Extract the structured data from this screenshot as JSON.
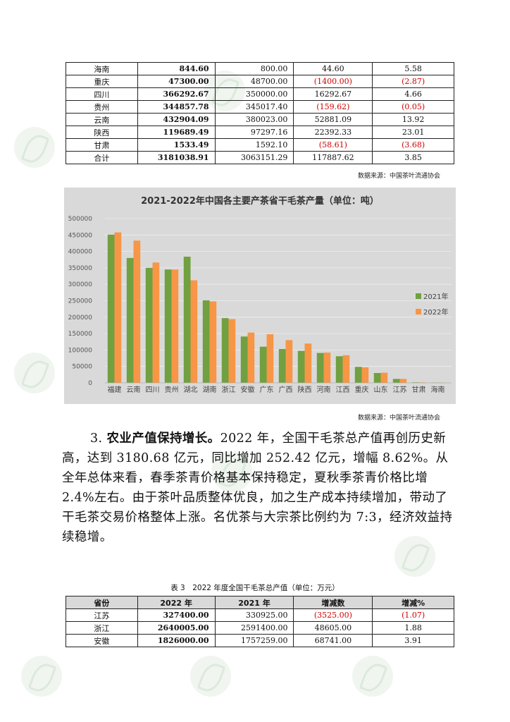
{
  "table1": {
    "rows": [
      {
        "province": "海南",
        "v2022": "844.60",
        "v2021": "800.00",
        "change": "44.60",
        "pct": "5.58",
        "neg": false
      },
      {
        "province": "重庆",
        "v2022": "47300.00",
        "v2021": "48700.00",
        "change": "(1400.00)",
        "pct": "(2.87)",
        "neg": true
      },
      {
        "province": "四川",
        "v2022": "366292.67",
        "v2021": "350000.00",
        "change": "16292.67",
        "pct": "4.66",
        "neg": false
      },
      {
        "province": "贵州",
        "v2022": "344857.78",
        "v2021": "345017.40",
        "change": "(159.62)",
        "pct": "(0.05)",
        "neg": true
      },
      {
        "province": "云南",
        "v2022": "432904.09",
        "v2021": "380023.00",
        "change": "52881.09",
        "pct": "13.92",
        "neg": false
      },
      {
        "province": "陕西",
        "v2022": "119689.49",
        "v2021": "97297.16",
        "change": "22392.33",
        "pct": "23.01",
        "neg": false
      },
      {
        "province": "甘肃",
        "v2022": "1533.49",
        "v2021": "1592.10",
        "change": "(58.61)",
        "pct": "(3.68)",
        "neg": true
      },
      {
        "province": "合计",
        "v2022": "3181038.91",
        "v2021": "3063151.29",
        "change": "117887.62",
        "pct": "3.85",
        "neg": false
      }
    ],
    "source": "数据来源：中国茶叶流通协会"
  },
  "chart_data": {
    "type": "bar",
    "title": "2021-2022年中国各主要产茶省干毛茶产量（单位：吨）",
    "categories": [
      "福建",
      "云南",
      "四川",
      "贵州",
      "湖北",
      "湖南",
      "浙江",
      "安徽",
      "广东",
      "广西",
      "陕西",
      "河南",
      "江西",
      "重庆",
      "山东",
      "江苏",
      "甘肃",
      "海南"
    ],
    "series": [
      {
        "name": "2021年",
        "color": "#70a040",
        "values": [
          451000,
          380023,
          350000,
          345017,
          384000,
          251000,
          197000,
          141000,
          110000,
          103000,
          97297,
          91000,
          81000,
          48700,
          30000,
          12000,
          1592,
          800
        ]
      },
      {
        "name": "2022年",
        "color": "#f79646",
        "values": [
          458000,
          432904,
          366293,
          344858,
          312000,
          248000,
          194000,
          153000,
          148000,
          130000,
          119689,
          92000,
          84000,
          47300,
          31000,
          12000,
          1533,
          845
        ]
      }
    ],
    "ylim": [
      0,
      500000
    ],
    "yticks": [
      "0",
      "50000",
      "100000",
      "150000",
      "200000",
      "250000",
      "300000",
      "350000",
      "400000",
      "450000",
      "500000"
    ],
    "legend": "right",
    "grid": true,
    "source": "数据来源：中国茶叶流通协会"
  },
  "para": {
    "lead": "3.",
    "bold": "农业产值保持增长。",
    "text": "2022 年，全国干毛茶总产值再创历史新高，达到 3180.68 亿元，同比增加 252.42 亿元，增幅 8.62%。从全年总体来看，春季茶青价格基本保持稳定，夏秋季茶青价格比增 2.4%左右。由于茶叶品质整体优良，加之生产成本持续增加，带动了干毛茶交易价格整体上涨。名优茶与大宗茶比例约为 7:3，经济效益持续稳增。"
  },
  "table3": {
    "caption": "表 3　2022 年度全国干毛茶总产值（单位：万元）",
    "headers": [
      "省份",
      "2022 年",
      "2021 年",
      "增减数",
      "增减%"
    ],
    "rows": [
      {
        "province": "江苏",
        "v2022": "327400.00",
        "v2021": "330925.00",
        "change": "(3525.00)",
        "pct": "(1.07)",
        "neg": true
      },
      {
        "province": "浙江",
        "v2022": "2640005.00",
        "v2021": "2591400.00",
        "change": "48605.00",
        "pct": "1.88",
        "neg": false
      },
      {
        "province": "安徽",
        "v2022": "1826000.00",
        "v2021": "1757259.00",
        "change": "68741.00",
        "pct": "3.91",
        "neg": false
      }
    ]
  }
}
